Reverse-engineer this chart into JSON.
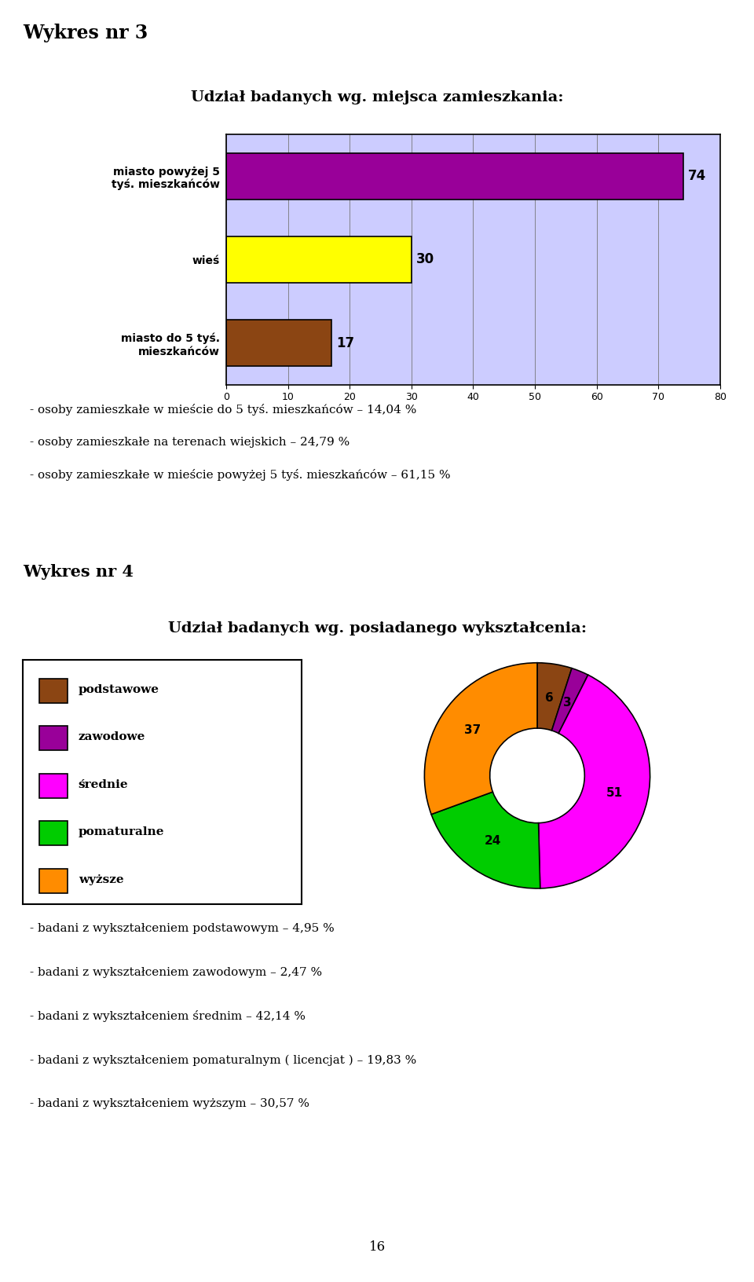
{
  "page_title": "Wykres nr 3",
  "bar_chart_title": "Udział badanych wg. miejsca zamieszkania:",
  "bar_categories": [
    "miasto do 5 tyś.\nmieszkańców",
    "wieś",
    "miasto powyżej 5\ntyś. mieszkańców"
  ],
  "bar_values": [
    17,
    30,
    74
  ],
  "bar_colors": [
    "#8B4513",
    "#ffff00",
    "#990099"
  ],
  "bar_bg_color": "#ccccff",
  "bar_xlim": [
    0,
    80
  ],
  "bar_xticks": [
    0,
    10,
    20,
    30,
    40,
    50,
    60,
    70,
    80
  ],
  "bar_notes": [
    "- osoby zamieszkałe w mieście do 5 tyś. mieszkańców – 14,04 %",
    "- osoby zamieszkałe na terenach wiejskich – 24,79 %",
    "- osoby zamieszkałe w mieście powyżej 5 tyś. mieszkańców – 61,15 %"
  ],
  "pie_section_title": "Wykres nr 4",
  "pie_chart_title": "Udział badanych wg. posiadanego wykształcenia:",
  "pie_values": [
    6,
    3,
    51,
    24,
    37
  ],
  "pie_colors": [
    "#8B4513",
    "#990099",
    "#ff00ff",
    "#00cc00",
    "#ff8c00"
  ],
  "pie_legend_labels": [
    "podstawowe",
    "zawodowe",
    "średnie",
    "pomaturalne",
    "wyższe"
  ],
  "pie_legend_colors": [
    "#8B4513",
    "#990099",
    "#ff00ff",
    "#00cc00",
    "#ff8c00"
  ],
  "pie_bg_color": "#ccccff",
  "pie_notes": [
    "- badani z wykształceniem podstawowym – 4,95 %",
    "- badani z wykształceniem zawodowym – 2,47 %",
    "- badani z wykształceniem średnim – 42,14 %",
    "- badani z wykształceniem pomaturalnym ( licencjat ) – 19,83 %",
    "- badani z wykształceniem wyższym – 30,57 %"
  ],
  "footer_text": "16",
  "bg_color": "#ffffff"
}
